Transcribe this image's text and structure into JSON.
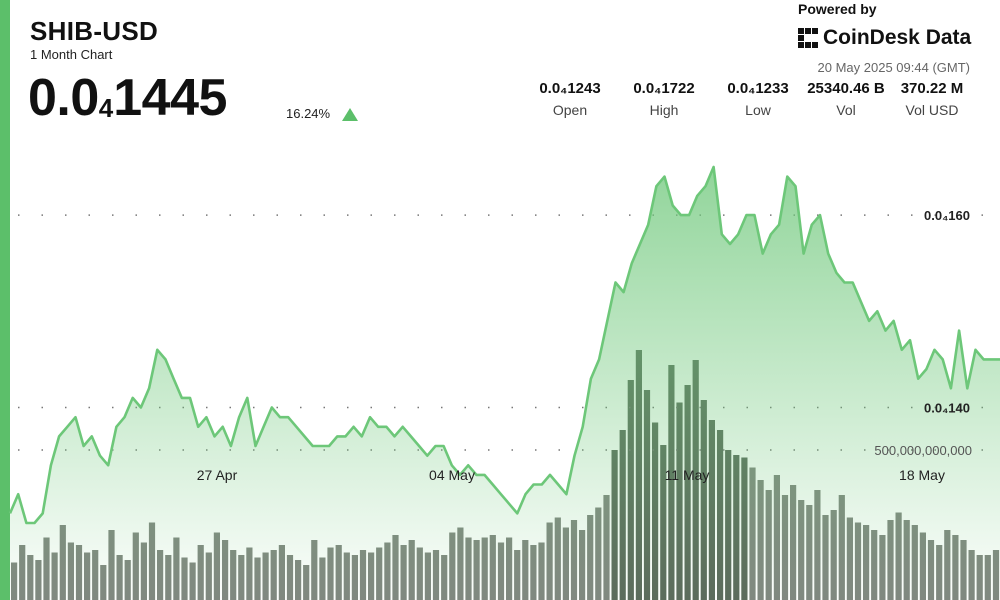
{
  "header": {
    "symbol": "SHIB-USD",
    "timeframe": "1 Month Chart",
    "price_main": "0.0",
    "price_sub": "4",
    "price_tail": "1445",
    "change": "16.24%",
    "change_direction": "up",
    "powered_by": "Powered by",
    "brand": "CoinDesk Data",
    "timestamp": "20 May 2025 09:44 (GMT)"
  },
  "stats": [
    {
      "value": "0.0₄1243",
      "label": "Open"
    },
    {
      "value": "0.0₄1722",
      "label": "High"
    },
    {
      "value": "0.0₄1233",
      "label": "Low"
    },
    {
      "value": "25340.46 B",
      "label": "Vol"
    },
    {
      "value": "370.22 M",
      "label": "Vol USD"
    }
  ],
  "colors": {
    "accent": "#5cbf6a",
    "line": "#6dc779",
    "volume_bar": "#737a72",
    "volume_bar_dark": "#4a5a4a"
  },
  "chart_data": {
    "type": "area",
    "y_unit_note": "price values in units of 0.0000 (0.0₄140 = 14.0)",
    "x_ticks": [
      "27 Apr",
      "04 May",
      "11 May",
      "18 May"
    ],
    "y_ticks": [
      {
        "value": 16.0,
        "label": "0.0₄160"
      },
      {
        "value": 14.0,
        "label": "0.0₄140"
      }
    ],
    "volume_tick": {
      "value": 500000000000,
      "label": "500,000,000,000"
    },
    "price_series": [
      12.9,
      13.1,
      12.8,
      12.8,
      12.9,
      13.4,
      13.7,
      13.8,
      13.9,
      13.6,
      13.7,
      13.5,
      13.4,
      13.8,
      13.9,
      14.1,
      14.0,
      14.2,
      14.6,
      14.5,
      14.3,
      14.1,
      14.1,
      13.8,
      13.9,
      13.7,
      13.8,
      13.6,
      13.9,
      14.1,
      13.6,
      13.8,
      14.0,
      13.9,
      13.9,
      13.8,
      13.7,
      13.6,
      13.6,
      13.6,
      13.7,
      13.7,
      13.8,
      13.7,
      13.9,
      13.8,
      13.8,
      13.7,
      13.8,
      13.7,
      13.6,
      13.5,
      13.6,
      13.6,
      13.4,
      13.3,
      13.4,
      13.3,
      13.3,
      13.2,
      13.1,
      13.0,
      12.9,
      13.1,
      13.2,
      13.2,
      13.3,
      13.2,
      13.1,
      13.5,
      13.8,
      14.3,
      14.5,
      14.9,
      15.3,
      15.2,
      15.5,
      15.7,
      15.9,
      16.3,
      16.4,
      16.1,
      16.0,
      16.0,
      16.2,
      16.3,
      16.5,
      15.8,
      15.7,
      15.8,
      16.0,
      16.0,
      15.6,
      15.8,
      15.9,
      16.4,
      16.3,
      15.6,
      15.9,
      16.0,
      15.6,
      15.4,
      15.3,
      15.3,
      15.1,
      14.9,
      15.0,
      14.8,
      14.9,
      14.6,
      14.7,
      14.3,
      14.4,
      14.6,
      14.5,
      14.2,
      14.8,
      14.2,
      14.6,
      14.5,
      14.5,
      14.5
    ],
    "price_ylim": [
      12.0,
      17.3
    ],
    "volume_series": [
      15,
      22,
      18,
      16,
      25,
      19,
      30,
      23,
      22,
      19,
      20,
      14,
      28,
      18,
      16,
      27,
      23,
      31,
      20,
      18,
      25,
      17,
      15,
      22,
      19,
      27,
      24,
      20,
      18,
      21,
      17,
      19,
      20,
      22,
      18,
      16,
      14,
      24,
      17,
      21,
      22,
      19,
      18,
      20,
      19,
      21,
      23,
      26,
      22,
      24,
      21,
      19,
      20,
      18,
      27,
      29,
      25,
      24,
      25,
      26,
      23,
      25,
      20,
      24,
      22,
      23,
      31,
      33,
      29,
      32,
      28,
      34,
      37,
      42,
      60,
      68,
      88,
      100,
      84,
      71,
      62,
      94,
      79,
      86,
      96,
      80,
      72,
      68,
      60,
      58,
      57,
      53,
      48,
      44,
      50,
      42,
      46,
      40,
      38,
      44,
      34,
      36,
      42,
      33,
      31,
      30,
      28,
      26,
      32,
      35,
      32,
      30,
      27,
      24,
      22,
      28,
      26,
      24,
      20,
      18,
      18,
      20
    ],
    "volume_max": 1100000000000
  }
}
